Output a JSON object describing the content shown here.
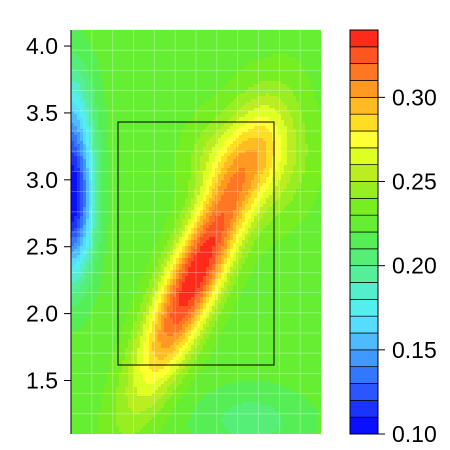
{
  "chart_data": {
    "type": "heatmap",
    "style": "filled-contour",
    "title": "",
    "xlabel": "",
    "ylabel": "",
    "ylim": [
      1.1,
      4.12
    ],
    "y_ticks": [
      1.5,
      2.0,
      2.5,
      3.0,
      3.5,
      4.0
    ],
    "y_tick_labels": [
      "1.5",
      "2.0",
      "2.5",
      "3.0",
      "3.5",
      "4.0"
    ],
    "x_ticks": [],
    "grid": true,
    "colorbar": {
      "range": [
        0.1,
        0.34
      ],
      "ticks": [
        0.1,
        0.15,
        0.2,
        0.25,
        0.3
      ],
      "tick_labels": [
        "0.10",
        "0.15",
        "0.20",
        "0.25",
        "0.30"
      ],
      "levels": 24,
      "colors": [
        "#0a10ff",
        "#1a33ff",
        "#2a55ff",
        "#3377ff",
        "#3f99ff",
        "#4fbbff",
        "#55ddff",
        "#55eeee",
        "#55eecc",
        "#55ee99",
        "#55ee77",
        "#55ee55",
        "#66ee33",
        "#77ee22",
        "#99ee22",
        "#bbee22",
        "#ddff22",
        "#ffff33",
        "#ffdd22",
        "#ffbb22",
        "#ff9922",
        "#ff7722",
        "#ff5522",
        "#ff2a1a"
      ]
    },
    "peak": {
      "y": 2.2,
      "value": 0.34
    },
    "low_region": {
      "y": 2.85,
      "value": 0.1
    },
    "highlight_rect": {
      "y_range": [
        1.57,
        3.43
      ]
    }
  }
}
